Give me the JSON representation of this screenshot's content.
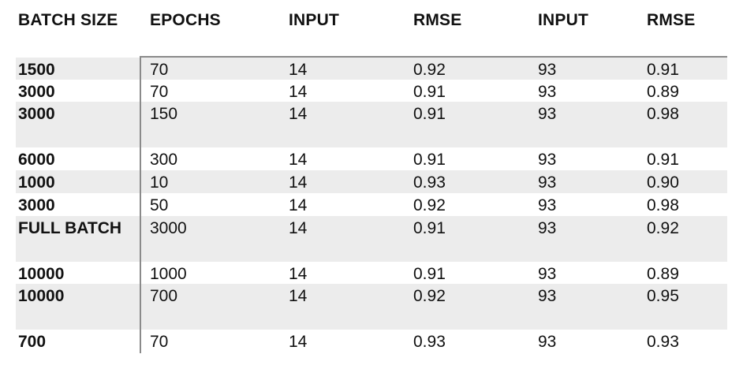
{
  "headers": [
    "BATCH SIZE",
    "EPOCHS",
    "INPUT",
    "RMSE",
    "INPUT",
    "RMSE"
  ],
  "rows": [
    {
      "batch": "1500",
      "epochs": "70",
      "input1": "14",
      "rmse1": "0.92",
      "input2": "93",
      "rmse2": "0.91"
    },
    {
      "batch": "3000",
      "epochs": "70",
      "input1": "14",
      "rmse1": "0.91",
      "input2": "93",
      "rmse2": "0.89"
    },
    {
      "batch": "3000",
      "epochs": "150",
      "input1": "14",
      "rmse1": "0.91",
      "input2": "93",
      "rmse2": "0.98"
    },
    {
      "batch": "6000",
      "epochs": "300",
      "input1": "14",
      "rmse1": "0.91",
      "input2": "93",
      "rmse2": "0.91"
    },
    {
      "batch": "1000",
      "epochs": "10",
      "input1": "14",
      "rmse1": "0.93",
      "input2": "93",
      "rmse2": "0.90"
    },
    {
      "batch": "3000",
      "epochs": "50",
      "input1": "14",
      "rmse1": "0.92",
      "input2": "93",
      "rmse2": "0.98"
    },
    {
      "batch": "FULL BATCH",
      "epochs": "3000",
      "input1": "14",
      "rmse1": "0.91",
      "input2": "93",
      "rmse2": "0.92"
    },
    {
      "batch": "10000",
      "epochs": "1000",
      "input1": "14",
      "rmse1": "0.91",
      "input2": "93",
      "rmse2": "0.89"
    },
    {
      "batch": "10000",
      "epochs": "700",
      "input1": "14",
      "rmse1": "0.92",
      "input2": "93",
      "rmse2": "0.95"
    },
    {
      "batch": "700",
      "epochs": "70",
      "input1": "14",
      "rmse1": "0.93",
      "input2": "93",
      "rmse2": "0.93"
    }
  ]
}
